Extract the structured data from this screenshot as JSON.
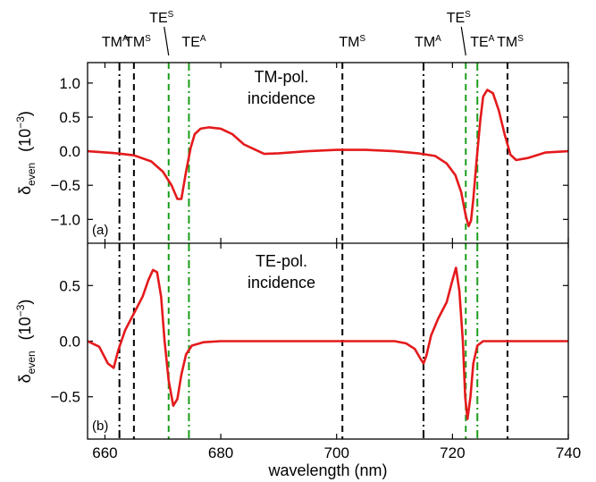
{
  "chart_data": [
    {
      "type": "line",
      "panel_label": "(a)",
      "annotation": [
        "TM-pol.",
        "incidence"
      ],
      "ylabel": {
        "main": "δ",
        "sub": "even",
        "unit": "(10",
        "exp": "−3",
        "close": ")"
      },
      "xlim": [
        657,
        740
      ],
      "ylim": [
        -1.35,
        1.3
      ],
      "yticks": [
        -1.0,
        -0.5,
        0.0,
        0.5,
        1.0
      ],
      "ytick_labels": [
        "−1.0",
        "−0.5",
        "0.0",
        "0.5",
        "1.0"
      ],
      "series": [
        {
          "color": "#e41a1c",
          "x": [
            657,
            662,
            665,
            668,
            670,
            671.5,
            672.5,
            673.2,
            674,
            674.8,
            675.5,
            676.5,
            678,
            680,
            682,
            684,
            686,
            687.5,
            690,
            695,
            700,
            705,
            710,
            714,
            717,
            719,
            720.5,
            721.5,
            722.3,
            722.8,
            723.2,
            723.6,
            724.2,
            724.8,
            725.3,
            726,
            727,
            728,
            729,
            730,
            731,
            733,
            736,
            740
          ],
          "y": [
            0.0,
            -0.03,
            -0.06,
            -0.15,
            -0.3,
            -0.5,
            -0.7,
            -0.7,
            -0.3,
            0.05,
            0.25,
            0.33,
            0.35,
            0.33,
            0.25,
            0.1,
            0.02,
            -0.04,
            -0.03,
            0.0,
            0.02,
            0.02,
            0.0,
            -0.03,
            -0.07,
            -0.18,
            -0.35,
            -0.6,
            -0.95,
            -1.1,
            -1.02,
            -0.7,
            -0.1,
            0.45,
            0.8,
            0.9,
            0.85,
            0.6,
            0.25,
            -0.05,
            -0.13,
            -0.1,
            -0.02,
            0.0
          ]
        }
      ]
    },
    {
      "type": "line",
      "panel_label": "(b)",
      "annotation": [
        "TE-pol.",
        "incidence"
      ],
      "ylabel": {
        "main": "δ",
        "sub": "even",
        "unit": "(10",
        "exp": "−3",
        "close": ")"
      },
      "xlim": [
        657,
        740
      ],
      "ylim": [
        -0.88,
        0.88
      ],
      "yticks": [
        -0.5,
        0.0,
        0.5
      ],
      "ytick_labels": [
        "−0.5",
        "0.0",
        "0.5"
      ],
      "series": [
        {
          "color": "#e41a1c",
          "x": [
            657,
            659,
            660.5,
            661.5,
            662.3,
            663.5,
            665,
            666.5,
            667.5,
            668.3,
            669,
            669.7,
            670.3,
            671,
            671.8,
            672.5,
            673.2,
            674,
            675,
            677,
            680,
            685,
            690,
            700,
            705,
            710,
            712,
            713.5,
            714.5,
            715,
            715.5,
            716.3,
            717.5,
            719,
            720,
            720.6,
            721.2,
            721.8,
            722.2,
            722.6,
            723.1,
            723.6,
            724.3,
            725.3,
            727,
            730,
            740
          ],
          "y": [
            0.0,
            -0.05,
            -0.2,
            -0.24,
            -0.08,
            0.1,
            0.25,
            0.4,
            0.55,
            0.64,
            0.62,
            0.4,
            0.0,
            -0.35,
            -0.58,
            -0.52,
            -0.3,
            -0.12,
            -0.04,
            -0.01,
            0.0,
            0.0,
            0.0,
            0.0,
            0.0,
            0.0,
            -0.02,
            -0.07,
            -0.16,
            -0.2,
            -0.13,
            0.05,
            0.2,
            0.35,
            0.55,
            0.66,
            0.45,
            0.0,
            -0.5,
            -0.7,
            -0.5,
            -0.2,
            -0.04,
            0.0,
            0.0,
            0.0,
            0.0
          ]
        }
      ]
    }
  ],
  "x_axis": {
    "label": "wavelength (nm)",
    "ticks": [
      660,
      680,
      700,
      720,
      740
    ],
    "tick_labels": [
      "660",
      "680",
      "700",
      "720",
      "740"
    ]
  },
  "mode_lines": [
    {
      "x": 662.5,
      "color": "#000000",
      "style": "dashdot"
    },
    {
      "x": 665.0,
      "color": "#000000",
      "style": "dash"
    },
    {
      "x": 671.0,
      "color": "#1a9e1a",
      "style": "dash"
    },
    {
      "x": 674.5,
      "color": "#1a9e1a",
      "style": "dashdot"
    },
    {
      "x": 701.0,
      "color": "#000000",
      "style": "dash"
    },
    {
      "x": 715.0,
      "color": "#000000",
      "style": "dashdot"
    },
    {
      "x": 722.3,
      "color": "#1a9e1a",
      "style": "dash"
    },
    {
      "x": 724.3,
      "color": "#1a9e1a",
      "style": "dashdot"
    },
    {
      "x": 729.5,
      "color": "#000000",
      "style": "dash"
    }
  ],
  "mode_labels": [
    {
      "name": "TM-antisym-1",
      "base": "TM",
      "sup": "A",
      "x": 662.5,
      "row": "lower"
    },
    {
      "name": "TM-sym-1",
      "base": "TM",
      "sup": "S",
      "x": 665.0,
      "row": "lower"
    },
    {
      "name": "TE-sym-1",
      "base": "TE",
      "sup": "S",
      "x": 671.0,
      "row": "upper",
      "pointer": true
    },
    {
      "name": "TE-antisym-1",
      "base": "TE",
      "sup": "A",
      "x": 674.5,
      "row": "lower"
    },
    {
      "name": "TM-sym-2",
      "base": "TM",
      "sup": "S",
      "x": 701.0,
      "row": "lower"
    },
    {
      "name": "TM-antisym-2",
      "base": "TM",
      "sup": "A",
      "x": 715.0,
      "row": "lower"
    },
    {
      "name": "TE-sym-2",
      "base": "TE",
      "sup": "S",
      "x": 722.3,
      "row": "upper",
      "pointer": true
    },
    {
      "name": "TE-antisym-2",
      "base": "TE",
      "sup": "A",
      "x": 724.3,
      "row": "lower"
    },
    {
      "name": "TM-sym-3",
      "base": "TM",
      "sup": "S",
      "x": 729.5,
      "row": "lower"
    }
  ],
  "colors": {
    "curve": "#e41a1c",
    "green": "#1a9e1a",
    "black": "#000000"
  }
}
